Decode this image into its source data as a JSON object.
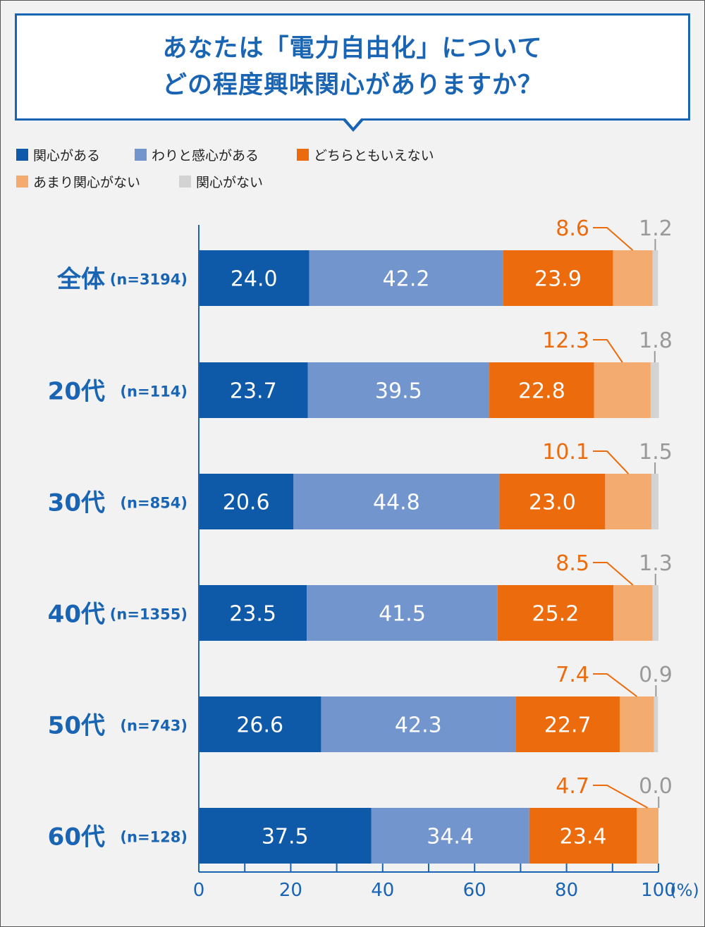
{
  "title": {
    "line1": "あなたは「電力自由化」について",
    "line2": "どの程度興味関心がありますか？"
  },
  "legend": [
    {
      "label": "関心がある",
      "color": "#0f5aa8"
    },
    {
      "label": "わりと感心がある",
      "color": "#7195cc"
    },
    {
      "label": "どちらともいえない",
      "color": "#ec6b0c"
    },
    {
      "label": "あまり関心がない",
      "color": "#f4ab70"
    },
    {
      "label": "関心がない",
      "color": "#d3d3d3"
    }
  ],
  "chart_data": {
    "type": "bar",
    "orientation": "horizontal",
    "stacked": true,
    "categories": [
      "全体",
      "20代",
      "30代",
      "40代",
      "50代",
      "60代"
    ],
    "sample_sizes": [
      "(n=3194)",
      "(n=114)",
      "(n=854)",
      "(n=1355)",
      "(n=743)",
      "(n=128)"
    ],
    "series": [
      {
        "name": "関心がある",
        "color": "#0f5aa8",
        "label_color": "#ffffff",
        "values": [
          24.0,
          23.7,
          20.6,
          23.5,
          26.6,
          37.5
        ]
      },
      {
        "name": "わりと感心がある",
        "color": "#7195cc",
        "label_color": "#ffffff",
        "values": [
          42.2,
          39.5,
          44.8,
          41.5,
          42.3,
          34.4
        ]
      },
      {
        "name": "どちらともいえない",
        "color": "#ec6b0c",
        "label_color": "#ffffff",
        "values": [
          23.9,
          22.8,
          23.0,
          25.2,
          22.7,
          23.4
        ]
      },
      {
        "name": "あまり関心がない",
        "color": "#f4ab70",
        "label_color": "#ec6b0c",
        "values": [
          8.6,
          12.3,
          10.1,
          8.5,
          7.4,
          4.7
        ]
      },
      {
        "name": "関心がない",
        "color": "#d3d3d3",
        "label_color": "#999999",
        "values": [
          1.2,
          1.8,
          1.5,
          1.3,
          0.9,
          0.0
        ]
      }
    ],
    "xlim": [
      0,
      100
    ],
    "xticks": [
      0,
      20,
      40,
      60,
      80,
      100
    ],
    "xunit": "(%)",
    "grid": false,
    "legend_position": "top-left"
  }
}
